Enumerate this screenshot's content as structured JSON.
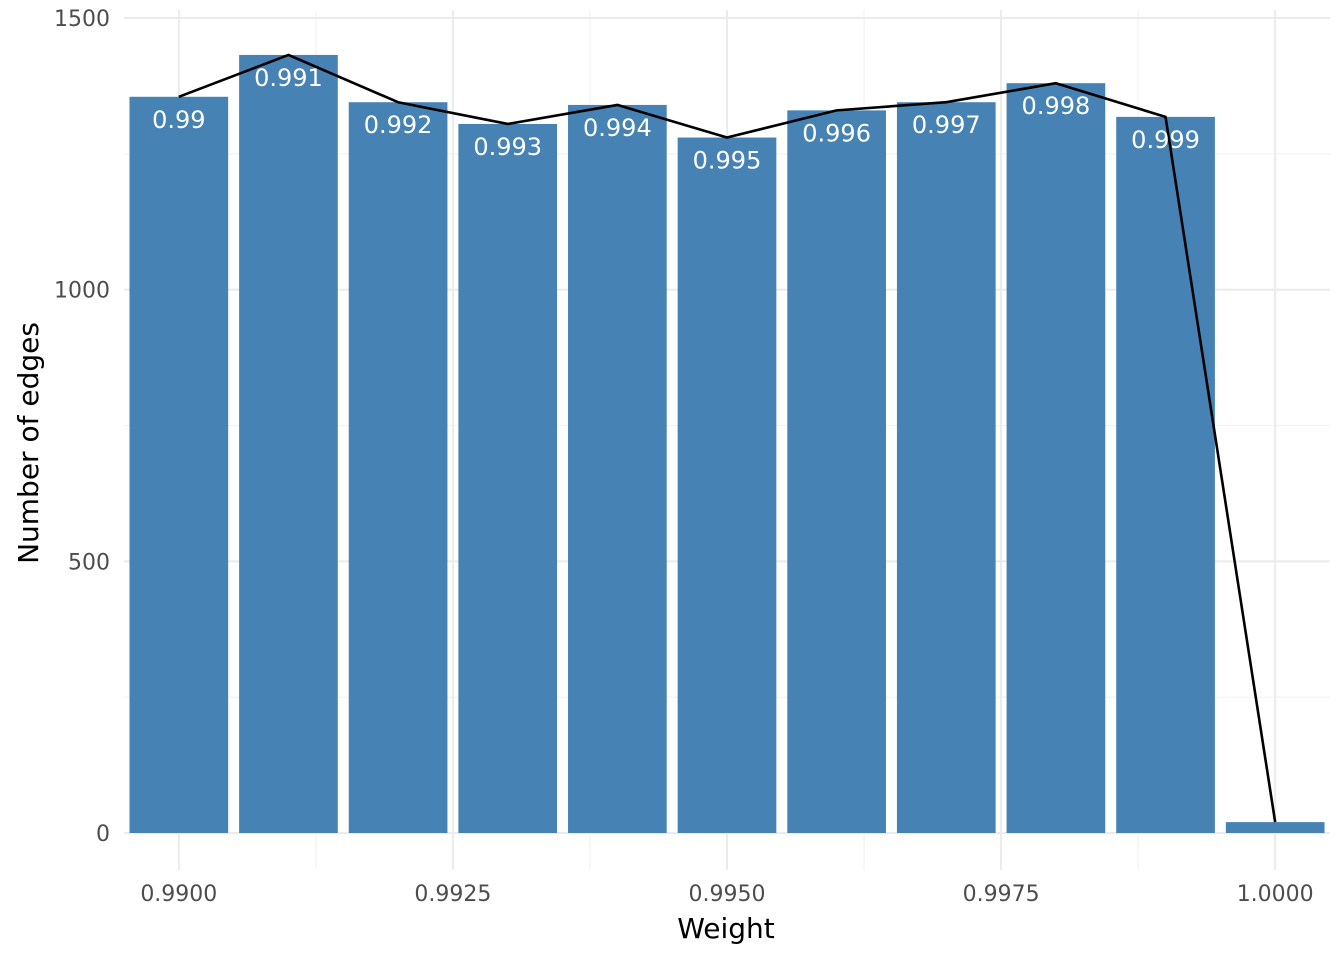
{
  "chart_data": {
    "type": "bar",
    "title": "",
    "xlabel": "Weight",
    "ylabel": "Number of edges",
    "xlim": [
      0.9895,
      1.0005
    ],
    "ylim": [
      0,
      1500
    ],
    "x_ticks": [
      0.99,
      0.9925,
      0.995,
      0.9975,
      1.0
    ],
    "x_tick_labels": [
      "0.9900",
      "0.9925",
      "0.9950",
      "0.9975",
      "1.0000"
    ],
    "y_ticks": [
      0,
      500,
      1000,
      1500
    ],
    "y_tick_labels": [
      "0",
      "500",
      "1000",
      "1500"
    ],
    "grid": true,
    "bar_color": "#4682b4",
    "line_color": "#000000",
    "x": [
      0.99,
      0.991,
      0.992,
      0.993,
      0.994,
      0.995,
      0.996,
      0.997,
      0.998,
      0.999,
      1.0
    ],
    "values": [
      1355,
      1432,
      1345,
      1305,
      1340,
      1280,
      1330,
      1345,
      1380,
      1318,
      20
    ],
    "bar_labels": [
      "0.99",
      "0.991",
      "0.992",
      "0.993",
      "0.994",
      "0.995",
      "0.996",
      "0.997",
      "0.998",
      "0.999",
      ""
    ]
  }
}
